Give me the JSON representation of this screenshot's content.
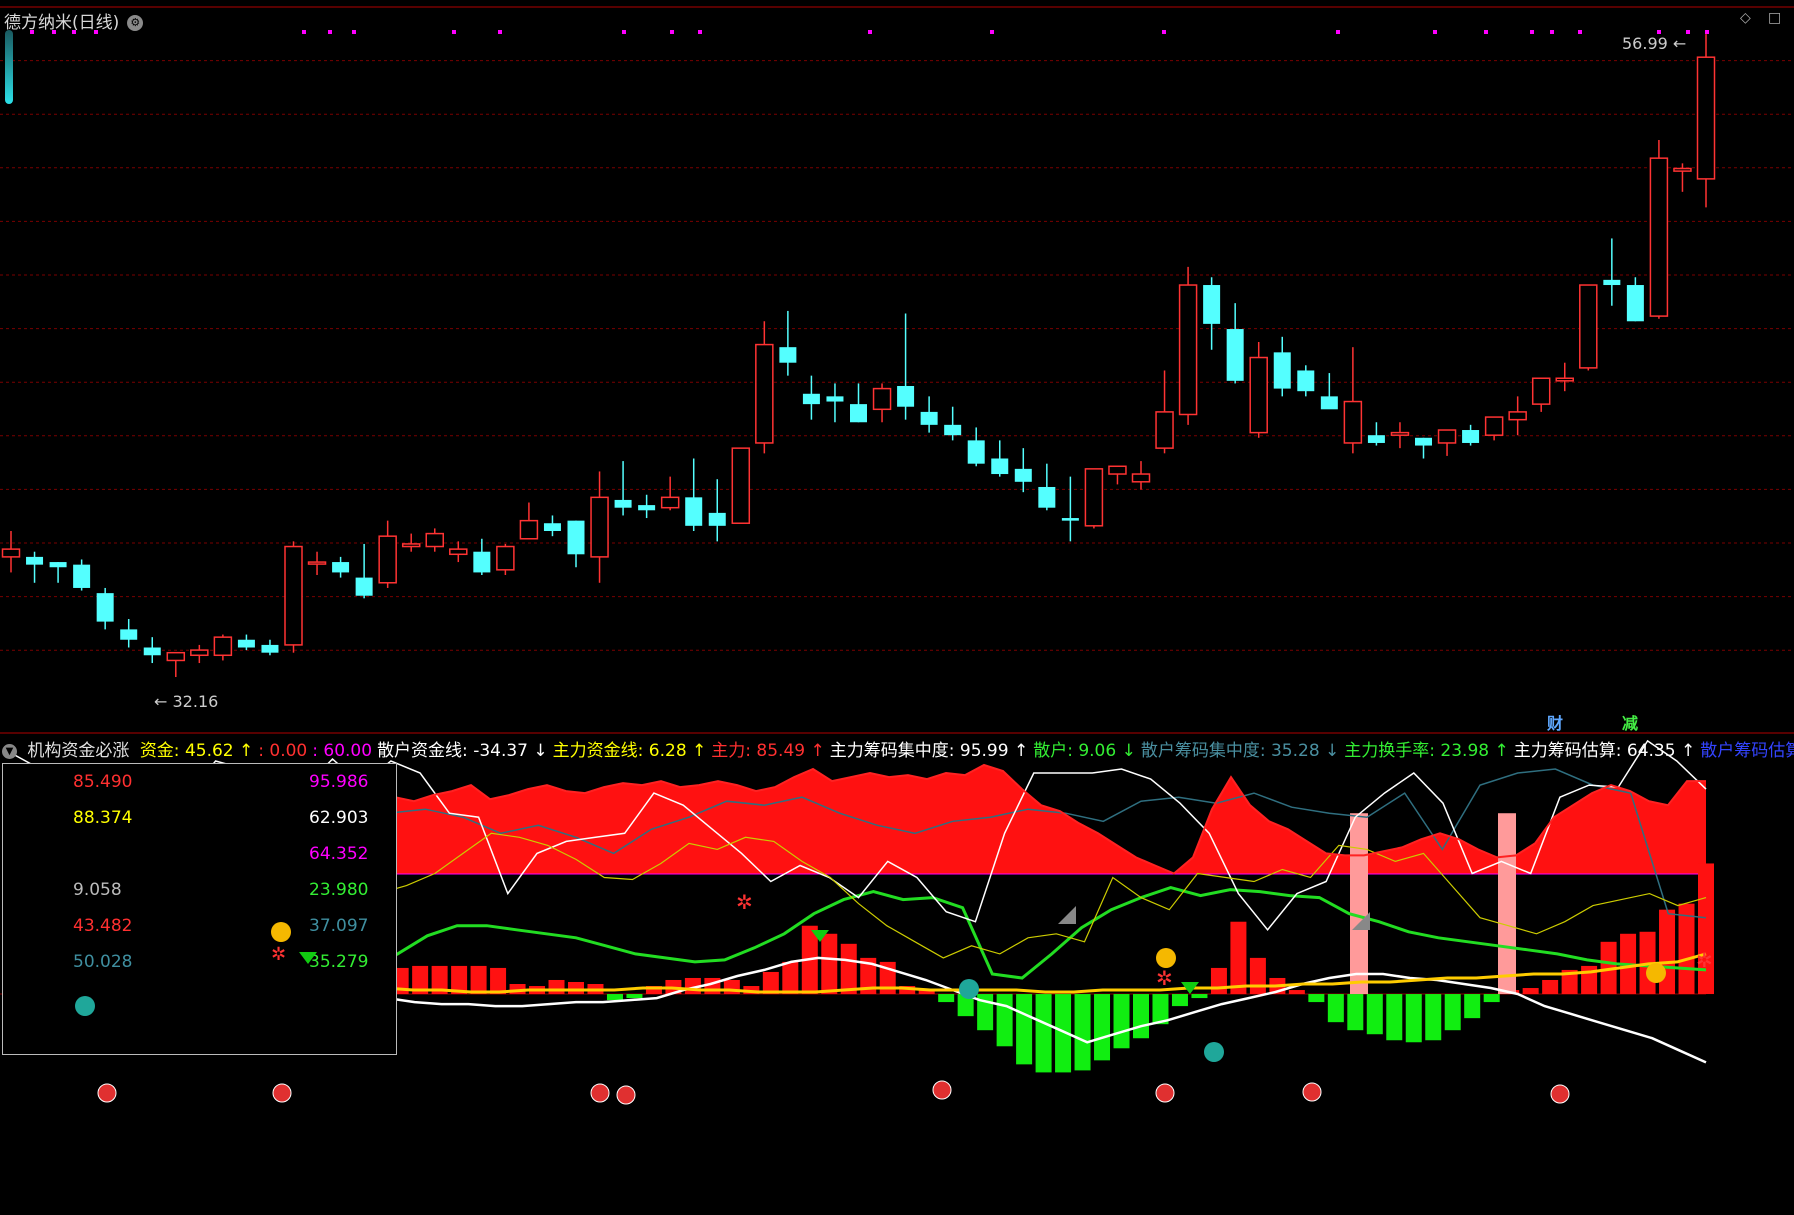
{
  "title": {
    "name": "德方纳米(日线)",
    "info_icon": "gear-icon"
  },
  "window_controls": {
    "restore": "◇",
    "maximize": "□"
  },
  "price_labels": {
    "high": "56.99",
    "low": "32.16"
  },
  "fin_tags": {
    "cai": "财",
    "jian": "减"
  },
  "indicator": {
    "name": "机构资金必涨",
    "fields": [
      {
        "text": "资金: 45.62",
        "arrow": "↑",
        "color": "#ffff00"
      },
      {
        "text": ": 0.00",
        "arrow": "",
        "color": "#ff3030"
      },
      {
        "text": ": 60.00",
        "arrow": "",
        "color": "#ff00ff"
      },
      {
        "text": "散户资金线: -34.37",
        "arrow": "↓",
        "color": "#ffffff"
      },
      {
        "text": "主力资金线: 6.28",
        "arrow": "↑",
        "color": "#ffff00"
      },
      {
        "text": "主力: 85.49",
        "arrow": "↑",
        "color": "#ff3030"
      },
      {
        "text": "主力筹码集中度: 95.99",
        "arrow": "↑",
        "color": "#ffffff"
      },
      {
        "text": "散户: 9.06",
        "arrow": "↓",
        "color": "#33ee33"
      },
      {
        "text": "散户筹码集中度: 35.28",
        "arrow": "↓",
        "color": "#4a8fa0"
      },
      {
        "text": "主力换手率: 23.98",
        "arrow": "↑",
        "color": "#33ee33"
      },
      {
        "text": "主力筹码估算: 64.35",
        "arrow": "↑",
        "color": "#ffffff"
      },
      {
        "text": "散户筹码估算",
        "arrow": "",
        "color": "#3344ff"
      }
    ]
  },
  "readout": {
    "left": [
      {
        "v": "85.490",
        "color": "#ff3030"
      },
      {
        "v": "88.374",
        "color": "#ffff00"
      },
      {
        "v": "",
        "color": "#ffffff"
      },
      {
        "v": "9.058",
        "color": "#bbbbbb"
      },
      {
        "v": "43.482",
        "color": "#ff3030"
      },
      {
        "v": "50.028",
        "color": "#3f8fa0"
      }
    ],
    "right": [
      {
        "v": "95.986",
        "color": "#ff00ff"
      },
      {
        "v": "62.903",
        "color": "#ffffff"
      },
      {
        "v": "64.352",
        "color": "#ff00ff"
      },
      {
        "v": "23.980",
        "color": "#33ee33"
      },
      {
        "v": "37.097",
        "color": "#3f8fa0"
      },
      {
        "v": "35.279",
        "color": "#33ee33"
      }
    ]
  },
  "colors": {
    "up": "#ff3333",
    "down": "#54ffff",
    "grid": "#7a0000",
    "magenta": "#ff00ff"
  },
  "chart_data": [
    {
      "type": "candlestick",
      "title": "德方纳米(日线)",
      "ylim": [
        30.5,
        58
      ],
      "candles": [
        [
          36.8,
          37.8,
          36.2,
          37.1
        ],
        [
          36.8,
          37.0,
          35.8,
          36.5
        ],
        [
          36.6,
          36.6,
          35.8,
          36.4
        ],
        [
          36.5,
          36.7,
          35.5,
          35.6
        ],
        [
          35.4,
          35.6,
          34.0,
          34.3
        ],
        [
          34.0,
          34.4,
          33.3,
          33.6
        ],
        [
          33.3,
          33.7,
          32.7,
          33.0
        ],
        [
          32.8,
          33.1,
          32.16,
          33.1
        ],
        [
          33.0,
          33.4,
          32.7,
          33.2
        ],
        [
          33.0,
          33.8,
          32.8,
          33.7
        ],
        [
          33.6,
          33.8,
          33.2,
          33.3
        ],
        [
          33.4,
          33.6,
          33.0,
          33.1
        ],
        [
          33.4,
          37.4,
          33.1,
          37.2
        ],
        [
          36.6,
          37.0,
          36.1,
          36.6
        ],
        [
          36.6,
          36.8,
          36.0,
          36.2
        ],
        [
          36.0,
          37.3,
          35.2,
          35.3
        ],
        [
          35.8,
          38.2,
          35.6,
          37.6
        ],
        [
          37.2,
          37.7,
          37.0,
          37.3
        ],
        [
          37.2,
          37.9,
          37.0,
          37.7
        ],
        [
          36.9,
          37.4,
          36.6,
          37.1
        ],
        [
          37.0,
          37.5,
          36.1,
          36.2
        ],
        [
          36.3,
          37.3,
          36.1,
          37.2
        ],
        [
          37.5,
          38.9,
          37.5,
          38.2
        ],
        [
          38.1,
          38.4,
          37.6,
          37.8
        ],
        [
          38.2,
          38.2,
          36.4,
          36.9
        ],
        [
          36.8,
          40.1,
          35.8,
          39.1
        ],
        [
          39.0,
          40.5,
          38.4,
          38.7
        ],
        [
          38.8,
          39.2,
          38.3,
          38.6
        ],
        [
          38.7,
          39.9,
          38.6,
          39.1
        ],
        [
          39.1,
          40.6,
          37.8,
          38.0
        ],
        [
          38.5,
          39.8,
          37.4,
          38.0
        ],
        [
          38.1,
          40.8,
          38.1,
          41.0
        ],
        [
          41.2,
          45.9,
          40.8,
          45.0
        ],
        [
          44.9,
          46.3,
          43.8,
          44.3
        ],
        [
          43.1,
          43.8,
          42.1,
          42.7
        ],
        [
          43.0,
          43.5,
          42.0,
          42.8
        ],
        [
          42.7,
          43.5,
          42.0,
          42.0
        ],
        [
          42.5,
          43.5,
          42.0,
          43.3
        ],
        [
          43.4,
          46.2,
          42.1,
          42.6
        ],
        [
          42.4,
          43.0,
          41.6,
          41.9
        ],
        [
          41.9,
          42.6,
          41.3,
          41.5
        ],
        [
          41.3,
          41.8,
          40.3,
          40.4
        ],
        [
          40.6,
          41.3,
          39.9,
          40.0
        ],
        [
          40.2,
          41.0,
          39.3,
          39.7
        ],
        [
          39.5,
          40.4,
          38.6,
          38.7
        ],
        [
          38.3,
          39.9,
          37.4,
          38.2
        ],
        [
          38.0,
          40.2,
          37.9,
          40.2
        ],
        [
          40.0,
          40.3,
          39.6,
          40.3
        ],
        [
          39.7,
          40.5,
          39.4,
          40.0
        ],
        [
          41.0,
          44.0,
          40.8,
          42.4
        ],
        [
          42.3,
          48.0,
          41.9,
          47.3
        ],
        [
          47.3,
          47.6,
          44.8,
          45.8
        ],
        [
          45.6,
          46.6,
          43.5,
          43.6
        ],
        [
          41.6,
          45.1,
          41.4,
          44.5
        ],
        [
          44.7,
          45.3,
          43.0,
          43.3
        ],
        [
          44.0,
          44.2,
          43.0,
          43.2
        ],
        [
          43.0,
          43.9,
          42.6,
          42.5
        ],
        [
          41.2,
          44.9,
          40.8,
          42.8
        ],
        [
          41.5,
          42.0,
          41.1,
          41.2
        ],
        [
          41.5,
          42.0,
          41.0,
          41.6
        ],
        [
          41.4,
          41.4,
          40.6,
          41.1
        ],
        [
          41.2,
          41.5,
          40.7,
          41.7
        ],
        [
          41.7,
          41.9,
          41.1,
          41.2
        ],
        [
          41.5,
          42.2,
          41.3,
          42.2
        ],
        [
          42.1,
          43.0,
          41.5,
          42.4
        ],
        [
          42.7,
          43.6,
          42.4,
          43.7
        ],
        [
          43.6,
          44.3,
          43.2,
          43.7
        ],
        [
          44.1,
          47.3,
          44.0,
          47.3
        ],
        [
          47.5,
          49.1,
          46.5,
          47.3
        ],
        [
          47.3,
          47.6,
          45.9,
          45.9
        ],
        [
          46.1,
          52.9,
          46.0,
          52.2
        ],
        [
          51.7,
          52.0,
          50.9,
          51.8
        ],
        [
          51.4,
          56.99,
          50.3,
          56.1
        ]
      ]
    },
    {
      "type": "bar",
      "title": "机构资金必涨",
      "ylim": [
        -105,
        115
      ],
      "ref_lines": [
        0,
        60
      ],
      "bars": [
        7,
        6,
        5,
        4,
        4,
        3,
        -8,
        -12,
        -13,
        -13,
        -12,
        -11,
        -10,
        -9,
        8,
        10,
        12,
        14,
        14,
        14,
        13,
        14,
        14,
        14,
        14,
        13,
        5,
        4,
        7,
        6,
        5,
        -3,
        -2,
        4,
        7,
        8,
        8,
        7,
        4,
        11,
        16,
        34,
        30,
        25,
        18,
        16,
        4,
        2,
        -4,
        -11,
        -18,
        -26,
        -35,
        -39,
        -39,
        -38,
        -33,
        -27,
        -22,
        -15,
        -6,
        -2,
        13,
        36,
        18,
        8,
        2,
        -4,
        -14,
        -18,
        -20,
        -23,
        -24,
        -23,
        -18,
        -12,
        -4,
        2,
        3,
        7,
        12,
        14,
        26,
        30,
        31,
        42,
        45,
        65
      ],
      "series": [
        {
          "name": "主力",
          "values": [
            98,
            96,
            99,
            101,
            104,
            97,
            99,
            102,
            104,
            101,
            100,
            103,
            105,
            104,
            106,
            103,
            104,
            106,
            104,
            101,
            103,
            108,
            112,
            106,
            108,
            110,
            108,
            109,
            107,
            110,
            109,
            114,
            111,
            102,
            94,
            91,
            85,
            80,
            74,
            68,
            64,
            60,
            68,
            92,
            108,
            94,
            86,
            82,
            76,
            70,
            69,
            69,
            71,
            73,
            77,
            80,
            77,
            72,
            68,
            69,
            75,
            88,
            94,
            100,
            104,
            101,
            96,
            94,
            106,
            106
          ]
        },
        {
          "name": "散户",
          "values": [
            30,
            33,
            35,
            34,
            32,
            30,
            28,
            24,
            22,
            18,
            15,
            10,
            12,
            20,
            29,
            34,
            34,
            32,
            30,
            28,
            24,
            20,
            18,
            16,
            17,
            23,
            30,
            40,
            47,
            51,
            47,
            48,
            43,
            10,
            8,
            20,
            33,
            42,
            48,
            53,
            49,
            52,
            51,
            49,
            48,
            40,
            36,
            31,
            28,
            26,
            24,
            22,
            20,
            17,
            15,
            14,
            13,
            12
          ]
        },
        {
          "name": "散户资金线",
          "values": [
            -5,
            -7,
            -9,
            -10,
            -8,
            -6,
            -3,
            1,
            3,
            4,
            5,
            4,
            3,
            1,
            -2,
            -4,
            -5,
            -5,
            -6,
            -6,
            -5,
            -4,
            -4,
            -3,
            -2,
            2,
            5,
            9,
            12,
            16,
            18,
            17,
            15,
            11,
            7,
            2,
            -3,
            -6,
            -12,
            -18,
            -24,
            -20,
            -16,
            -13,
            -9,
            -5,
            -2,
            1,
            5,
            8,
            10,
            10,
            8,
            7,
            5,
            3,
            0,
            -6,
            -10,
            -14,
            -18,
            -22,
            -28,
            -34
          ]
        },
        {
          "name": "资金",
          "values": [
            1,
            1,
            1,
            1,
            0,
            1,
            2,
            2,
            1,
            1,
            2,
            2,
            3,
            3,
            2,
            2,
            1,
            1,
            2,
            2,
            2,
            2,
            3,
            3,
            2,
            2,
            1,
            1,
            1,
            2,
            3,
            3,
            2,
            2,
            2,
            2,
            1,
            1,
            2,
            2,
            2,
            3,
            3,
            4,
            4,
            5,
            5,
            6,
            6,
            7,
            8,
            8,
            9,
            10,
            10,
            11,
            13,
            15,
            16,
            20
          ]
        },
        {
          "name": "散户筹码集中度",
          "values": [
            20,
            40,
            60,
            72,
            82,
            75,
            60,
            68,
            72,
            85,
            90,
            92,
            88,
            80,
            84,
            78,
            70,
            82,
            88,
            96,
            94,
            98,
            90,
            84,
            80,
            86,
            88,
            92,
            90,
            86,
            96,
            98,
            95,
            100,
            93,
            90,
            88,
            100,
            72,
            104,
            110,
            112,
            104,
            100,
            40,
            38
          ]
        },
        {
          "name": "主力筹码集中度",
          "values": [
            120,
            112,
            104,
            110,
            94,
            108,
            98,
            116,
            112,
            114,
            102,
            117,
            104,
            116,
            110,
            90,
            88,
            50,
            70,
            76,
            78,
            80,
            100,
            94,
            82,
            70,
            56,
            64,
            58,
            48,
            66,
            58,
            41,
            36,
            80,
            110,
            110,
            110,
            112,
            107,
            95,
            80,
            50,
            32,
            50,
            56,
            88,
            100,
            110,
            95,
            60,
            66,
            60,
            98,
            104,
            103,
            126,
            116,
            102
          ]
        },
        {
          "name": "主力筹码估算",
          "values": [
            40,
            50,
            55,
            62,
            56,
            58,
            66,
            71,
            70,
            65,
            59,
            56,
            48,
            50,
            54,
            60,
            70,
            80,
            78,
            74,
            67,
            58,
            57,
            65,
            75,
            72,
            78,
            76,
            66,
            58,
            45,
            34,
            26,
            18,
            24,
            20,
            28,
            30,
            26,
            58,
            48,
            42,
            60,
            58,
            56,
            62,
            58,
            74,
            72,
            66,
            70,
            54,
            38,
            34,
            30,
            36,
            44,
            47,
            50,
            44,
            48
          ]
        }
      ]
    }
  ]
}
